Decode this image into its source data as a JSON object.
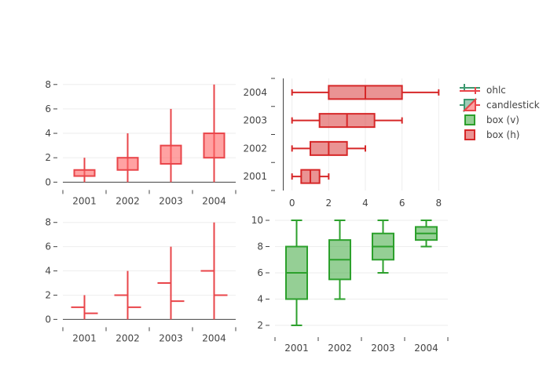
{
  "colors": {
    "decreasing": "#e9454a",
    "decreasing_fill": "rgba(255,100,100,0.6)",
    "box_h_line": "#d62728",
    "box_h_fill": "rgba(214,39,40,0.5)",
    "box_v_line": "#2ca02c",
    "box_v_fill": "rgba(44,160,44,0.5)",
    "increasing": "#3d9970",
    "grid": "#eeeeee",
    "axis": "#444444"
  },
  "legend": {
    "items": [
      {
        "label": "ohlc",
        "type": "ohlc"
      },
      {
        "label": "candlestick",
        "type": "candlestick"
      },
      {
        "label": "box (v)",
        "type": "box_v"
      },
      {
        "label": "box (h)",
        "type": "box_h"
      }
    ]
  },
  "chart_data": [
    {
      "type": "candlestick",
      "panel": "top-left",
      "name": "candlestick",
      "categories": [
        "2001",
        "2002",
        "2003",
        "2004"
      ],
      "open": [
        1,
        2,
        3,
        4
      ],
      "high": [
        2,
        4,
        6,
        8
      ],
      "low": [
        0,
        0,
        0,
        0
      ],
      "close": [
        0.5,
        1,
        1.5,
        2
      ],
      "direction": "decreasing",
      "ylim": [
        -0.3,
        8.5
      ],
      "yticks": [
        0,
        2,
        4,
        6,
        8
      ],
      "title": "",
      "xlabel": "",
      "ylabel": ""
    },
    {
      "type": "box",
      "orientation": "horizontal",
      "panel": "top-right",
      "name": "box (h)",
      "categories": [
        "2001",
        "2002",
        "2003",
        "2004"
      ],
      "boxes": [
        {
          "min": 0,
          "q1": 0.5,
          "median": 1,
          "q3": 1.5,
          "max": 2
        },
        {
          "min": 0,
          "q1": 1,
          "median": 2,
          "q3": 3,
          "max": 4
        },
        {
          "min": 0,
          "q1": 1.5,
          "median": 3,
          "q3": 4.5,
          "max": 6
        },
        {
          "min": 0,
          "q1": 2,
          "median": 4,
          "q3": 6,
          "max": 8
        }
      ],
      "xlim": [
        -0.5,
        8.5
      ],
      "xticks": [
        0,
        2,
        4,
        6,
        8
      ],
      "title": "",
      "xlabel": "",
      "ylabel": ""
    },
    {
      "type": "ohlc",
      "panel": "bottom-left",
      "name": "ohlc",
      "categories": [
        "2001",
        "2002",
        "2003",
        "2004"
      ],
      "open": [
        1,
        2,
        3,
        4
      ],
      "high": [
        2,
        4,
        6,
        8
      ],
      "low": [
        0,
        0,
        0,
        0
      ],
      "close": [
        0.5,
        1,
        1.5,
        2
      ],
      "direction": "decreasing",
      "ylim": [
        -0.3,
        8.5
      ],
      "yticks": [
        0,
        2,
        4,
        6,
        8
      ],
      "title": "",
      "xlabel": "",
      "ylabel": ""
    },
    {
      "type": "box",
      "orientation": "vertical",
      "panel": "bottom-right",
      "name": "box (v)",
      "categories": [
        "2001",
        "2002",
        "2003",
        "2004"
      ],
      "boxes": [
        {
          "min": 2,
          "q1": 4,
          "median": 6,
          "q3": 8,
          "max": 10
        },
        {
          "min": 4,
          "q1": 5.5,
          "median": 7,
          "q3": 8.5,
          "max": 10
        },
        {
          "min": 6,
          "q1": 7,
          "median": 8,
          "q3": 9,
          "max": 10
        },
        {
          "min": 8,
          "q1": 8.5,
          "median": 9,
          "q3": 9.5,
          "max": 10
        }
      ],
      "ylim": [
        1.7,
        10.3
      ],
      "yticks": [
        2,
        4,
        6,
        8,
        10
      ],
      "title": "",
      "xlabel": "",
      "ylabel": ""
    }
  ]
}
